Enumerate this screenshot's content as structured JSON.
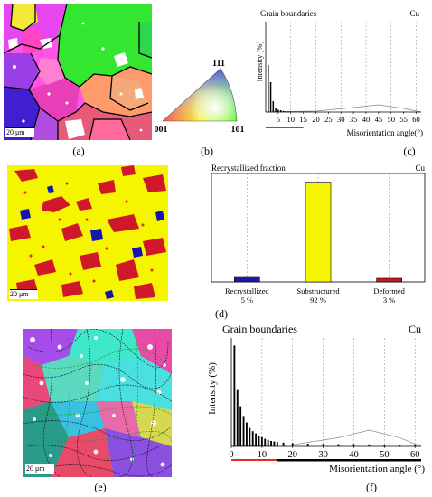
{
  "captions": {
    "a": "(a)",
    "b": "(b)",
    "c": "(c)",
    "d": "(d)",
    "e": "(e)",
    "f": "(f)"
  },
  "scalebars": {
    "a": "20 μm",
    "d": "20 μm",
    "e": "20 μm"
  },
  "ipf": {
    "top": "111",
    "left": "001",
    "right": "101"
  },
  "chart_data": [
    {
      "panel": "c",
      "type": "bar",
      "title": "Grain  boundaries",
      "material": "Cu",
      "xlabel": "Misorientation angle(°)",
      "ylabel": "Intensity (%)",
      "x_ticks": [
        "5",
        "10",
        "15",
        "20",
        "25",
        "30",
        "35",
        "40",
        "45",
        "50",
        "55",
        "60"
      ],
      "xlim": [
        0,
        62
      ],
      "ylim": [
        0,
        1
      ],
      "grid": "dashed vertical lines at 10° intervals",
      "low_angle_marker_color": "#e8282b",
      "bars": [
        {
          "x": 1,
          "y": 0.52
        },
        {
          "x": 2,
          "y": 0.33
        },
        {
          "x": 3,
          "y": 0.12
        },
        {
          "x": 4,
          "y": 0.04
        },
        {
          "x": 5,
          "y": 0.025
        },
        {
          "x": 6,
          "y": 0.02
        },
        {
          "x": 7,
          "y": 0.012
        },
        {
          "x": 8,
          "y": 0.01
        },
        {
          "x": 9,
          "y": 0.008
        },
        {
          "x": 10,
          "y": 0.007
        },
        {
          "x": 12,
          "y": 0.006
        },
        {
          "x": 14,
          "y": 0.005
        },
        {
          "x": 16,
          "y": 0.005
        },
        {
          "x": 20,
          "y": 0.004
        },
        {
          "x": 25,
          "y": 0.004
        },
        {
          "x": 30,
          "y": 0.004
        },
        {
          "x": 35,
          "y": 0.004
        },
        {
          "x": 40,
          "y": 0.004
        },
        {
          "x": 45,
          "y": 0.004
        },
        {
          "x": 50,
          "y": 0.003
        },
        {
          "x": 55,
          "y": 0.003
        },
        {
          "x": 60,
          "y": 0.002
        }
      ],
      "reference_curve": [
        [
          0,
          0
        ],
        [
          20,
          0.01
        ],
        [
          35,
          0.05
        ],
        [
          45,
          0.08
        ],
        [
          55,
          0.04
        ],
        [
          62,
          0
        ]
      ]
    },
    {
      "panel": "d",
      "type": "bar",
      "title": "Recrystallized  fraction",
      "material": "Cu",
      "categories": [
        "Recrystallized",
        "Substructured",
        "Deformed"
      ],
      "values": [
        5,
        92,
        3
      ],
      "value_labels": [
        "5 %",
        "92 %",
        "3 %"
      ],
      "colors": [
        "#1a1aa6",
        "#f5f500",
        "#c41a1a"
      ],
      "ylim": [
        0,
        100
      ]
    },
    {
      "panel": "f",
      "type": "bar",
      "title": "Grain  boundaries",
      "material": "Cu",
      "xlabel": "Misorientation angle (°)",
      "ylabel": "Intensity (%)",
      "x_ticks": [
        "0",
        "10",
        "20",
        "30",
        "40",
        "50",
        "60"
      ],
      "xlim": [
        0,
        62
      ],
      "ylim": [
        0,
        1
      ],
      "grid": "dashed vertical lines at 10° intervals",
      "low_angle_marker_color": "#e8282b",
      "bars": [
        {
          "x": 1,
          "y": 0.93
        },
        {
          "x": 2,
          "y": 0.52
        },
        {
          "x": 3,
          "y": 0.37
        },
        {
          "x": 4,
          "y": 0.28
        },
        {
          "x": 5,
          "y": 0.22
        },
        {
          "x": 6,
          "y": 0.17
        },
        {
          "x": 7,
          "y": 0.14
        },
        {
          "x": 8,
          "y": 0.12
        },
        {
          "x": 9,
          "y": 0.1
        },
        {
          "x": 10,
          "y": 0.085
        },
        {
          "x": 11,
          "y": 0.07
        },
        {
          "x": 12,
          "y": 0.06
        },
        {
          "x": 13,
          "y": 0.05
        },
        {
          "x": 14,
          "y": 0.045
        },
        {
          "x": 15,
          "y": 0.04
        },
        {
          "x": 17,
          "y": 0.035
        },
        {
          "x": 20,
          "y": 0.03
        },
        {
          "x": 25,
          "y": 0.025
        },
        {
          "x": 30,
          "y": 0.022
        },
        {
          "x": 35,
          "y": 0.02
        },
        {
          "x": 40,
          "y": 0.02
        },
        {
          "x": 45,
          "y": 0.018
        },
        {
          "x": 50,
          "y": 0.016
        },
        {
          "x": 55,
          "y": 0.014
        },
        {
          "x": 60,
          "y": 0.01
        }
      ],
      "reference_curve": [
        [
          0,
          0
        ],
        [
          20,
          0.015
        ],
        [
          35,
          0.08
        ],
        [
          45,
          0.15
        ],
        [
          55,
          0.08
        ],
        [
          62,
          0
        ]
      ]
    }
  ]
}
